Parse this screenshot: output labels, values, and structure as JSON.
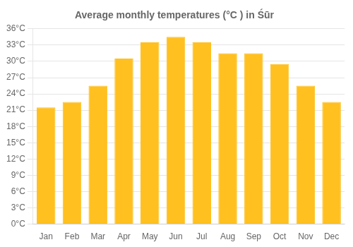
{
  "chart_data": {
    "type": "bar",
    "title": "Average monthly temperatures (°C ) in Śūr",
    "categories": [
      "Jan",
      "Feb",
      "Mar",
      "Apr",
      "May",
      "Jun",
      "Jul",
      "Aug",
      "Sep",
      "Oct",
      "Nov",
      "Dec"
    ],
    "values": [
      21.5,
      22.5,
      25.5,
      30.5,
      33.5,
      34.5,
      33.5,
      31.5,
      31.5,
      29.5,
      25.5,
      22.5
    ],
    "color": "#FFC020",
    "ylim": [
      0,
      36
    ],
    "yticks": [
      {
        "value": 0,
        "label": "0°C"
      },
      {
        "value": 3,
        "label": "3°C"
      },
      {
        "value": 6,
        "label": "6°C"
      },
      {
        "value": 9,
        "label": "9°C"
      },
      {
        "value": 12,
        "label": "12°C"
      },
      {
        "value": 15,
        "label": "15°C"
      },
      {
        "value": 18,
        "label": "18°C"
      },
      {
        "value": 21,
        "label": "21°C"
      },
      {
        "value": 24,
        "label": "24°C"
      },
      {
        "value": 27,
        "label": "27°C"
      },
      {
        "value": 30,
        "label": "30°C"
      },
      {
        "value": 33,
        "label": "33°C"
      },
      {
        "value": 36,
        "label": "36°C"
      }
    ],
    "grid": true
  }
}
